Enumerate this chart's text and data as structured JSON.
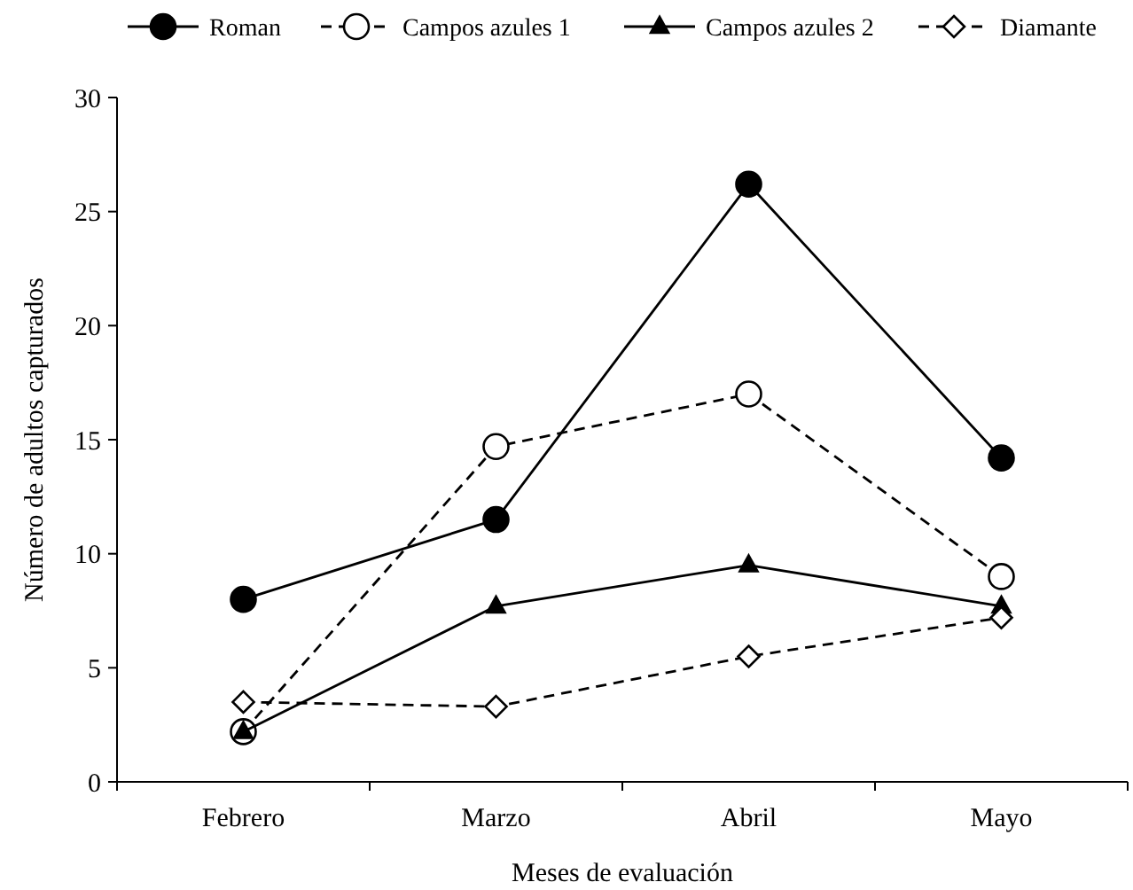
{
  "chart_data": {
    "type": "line",
    "xlabel": "Meses de evaluación",
    "ylabel": "Número de adultos capturados",
    "categories": [
      "Febrero",
      "Marzo",
      "Abril",
      "Mayo"
    ],
    "series": [
      {
        "name": "Roman",
        "color": "#000000",
        "marker": "circle",
        "line_style": "solid",
        "values": [
          8.0,
          11.5,
          26.2,
          14.2
        ]
      },
      {
        "name": "Campos azules 1",
        "color": "#000000",
        "marker": "circle",
        "line_style": "dashed",
        "values": [
          2.2,
          14.7,
          17.0,
          9.0
        ]
      },
      {
        "name": "Campos azules 2",
        "color": "#000000",
        "marker": "triangle",
        "line_style": "solid",
        "values": [
          2.2,
          7.7,
          9.5,
          7.7
        ]
      },
      {
        "name": "Diamante",
        "color": "#000000",
        "marker": "diamond",
        "line_style": "dashed",
        "values": [
          3.5,
          3.3,
          5.5,
          7.2
        ]
      }
    ],
    "ylim": [
      0,
      30
    ],
    "yticks": [
      0,
      5,
      10,
      15,
      20,
      25,
      30
    ],
    "grid": false,
    "legend": "top"
  }
}
